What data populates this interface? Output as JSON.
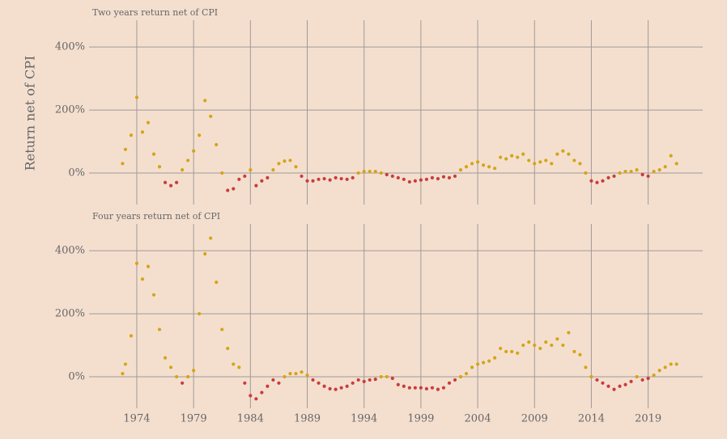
{
  "ylabel": "Return net of CPI",
  "chart_data": [
    {
      "type": "scatter",
      "title": "Two years return net of CPI",
      "x": [
        1972.75,
        1973,
        1973.5,
        1974,
        1974.5,
        1975,
        1975.5,
        1976,
        1976.5,
        1977,
        1977.5,
        1978,
        1978.5,
        1979,
        1979.5,
        1980,
        1980.5,
        1981,
        1981.5,
        1982,
        1982.5,
        1983,
        1983.5,
        1984,
        1984.5,
        1985,
        1985.5,
        1986,
        1986.5,
        1987,
        1987.5,
        1988,
        1988.5,
        1989,
        1989.5,
        1990,
        1990.5,
        1991,
        1991.5,
        1992,
        1992.5,
        1993,
        1993.5,
        1994,
        1994.5,
        1995,
        1995.5,
        1996,
        1996.5,
        1997,
        1997.5,
        1998,
        1998.5,
        1999,
        1999.5,
        2000,
        2000.5,
        2001,
        2001.5,
        2002,
        2002.5,
        2003,
        2003.5,
        2004,
        2004.5,
        2005,
        2005.5,
        2006,
        2006.5,
        2007,
        2007.5,
        2008,
        2008.5,
        2009,
        2009.5,
        2010,
        2010.5,
        2011,
        2011.5,
        2012,
        2012.5,
        2013,
        2013.5,
        2014,
        2014.5,
        2015,
        2015.5,
        2016,
        2016.5,
        2017,
        2017.5,
        2018,
        2018.5,
        2019,
        2019.5,
        2020,
        2020.5,
        2021,
        2021.5
      ],
      "values": [
        30,
        75,
        120,
        240,
        130,
        160,
        60,
        20,
        -30,
        -40,
        -30,
        10,
        40,
        70,
        120,
        230,
        180,
        90,
        0,
        -55,
        -50,
        -20,
        -10,
        10,
        -40,
        -25,
        -15,
        10,
        30,
        38,
        40,
        20,
        -10,
        -25,
        -25,
        -20,
        -18,
        -22,
        -15,
        -18,
        -20,
        -15,
        0,
        5,
        5,
        5,
        0,
        -5,
        -10,
        -15,
        -20,
        -28,
        -25,
        -22,
        -20,
        -15,
        -18,
        -12,
        -15,
        -10,
        10,
        20,
        30,
        35,
        25,
        20,
        15,
        50,
        45,
        55,
        50,
        60,
        40,
        30,
        35,
        40,
        30,
        60,
        70,
        60,
        40,
        30,
        0,
        -25,
        -30,
        -25,
        -15,
        -10,
        0,
        5,
        5,
        10,
        -5,
        -10,
        5,
        10,
        20,
        55,
        30
      ],
      "positive_color": "#d4a514",
      "negative_color": "#c93c3c",
      "xlim": [
        1969.8,
        2023.8
      ],
      "ylim": [
        -100,
        485
      ],
      "xticks": [
        1974,
        1979,
        1984,
        1989,
        1994,
        1999,
        2004,
        2009,
        2014,
        2019
      ],
      "yticks": [
        {
          "value": 0,
          "label": "0%"
        },
        {
          "value": 200,
          "label": "200%"
        },
        {
          "value": 400,
          "label": "400%"
        }
      ],
      "grid": true
    },
    {
      "type": "scatter",
      "title": "Four years return net of CPI",
      "x": [
        1972.75,
        1973,
        1973.5,
        1974,
        1974.5,
        1975,
        1975.5,
        1976,
        1976.5,
        1977,
        1977.5,
        1978,
        1978.5,
        1979,
        1979.5,
        1980,
        1980.5,
        1981,
        1981.5,
        1982,
        1982.5,
        1983,
        1983.5,
        1984,
        1984.5,
        1985,
        1985.5,
        1986,
        1986.5,
        1987,
        1987.5,
        1988,
        1988.5,
        1989,
        1989.5,
        1990,
        1990.5,
        1991,
        1991.5,
        1992,
        1992.5,
        1993,
        1993.5,
        1994,
        1994.5,
        1995,
        1995.5,
        1996,
        1996.5,
        1997,
        1997.5,
        1998,
        1998.5,
        1999,
        1999.5,
        2000,
        2000.5,
        2001,
        2001.5,
        2002,
        2002.5,
        2003,
        2003.5,
        2004,
        2004.5,
        2005,
        2005.5,
        2006,
        2006.5,
        2007,
        2007.5,
        2008,
        2008.5,
        2009,
        2009.5,
        2010,
        2010.5,
        2011,
        2011.5,
        2012,
        2012.5,
        2013,
        2013.5,
        2014,
        2014.5,
        2015,
        2015.5,
        2016,
        2016.5,
        2017,
        2017.5,
        2018,
        2018.5,
        2019,
        2019.5,
        2020,
        2020.5,
        2021,
        2021.5
      ],
      "values": [
        10,
        40,
        130,
        360,
        310,
        350,
        260,
        150,
        60,
        30,
        0,
        -20,
        0,
        20,
        200,
        390,
        440,
        300,
        150,
        90,
        40,
        30,
        -20,
        -60,
        -70,
        -50,
        -30,
        -10,
        -20,
        0,
        10,
        10,
        15,
        5,
        -10,
        -20,
        -30,
        -38,
        -40,
        -35,
        -30,
        -20,
        -10,
        -15,
        -10,
        -8,
        0,
        0,
        -5,
        -25,
        -30,
        -35,
        -35,
        -35,
        -38,
        -35,
        -40,
        -35,
        -20,
        -10,
        0,
        10,
        30,
        40,
        45,
        50,
        60,
        90,
        80,
        80,
        75,
        100,
        110,
        100,
        90,
        110,
        100,
        120,
        100,
        140,
        80,
        70,
        30,
        0,
        -10,
        -20,
        -30,
        -40,
        -30,
        -25,
        -15,
        0,
        -10,
        -5,
        5,
        20,
        30,
        40,
        40
      ],
      "positive_color": "#d4a514",
      "negative_color": "#c93c3c",
      "xlim": [
        1969.8,
        2023.8
      ],
      "ylim": [
        -100,
        485
      ],
      "xticks": [
        1974,
        1979,
        1984,
        1989,
        1994,
        1999,
        2004,
        2009,
        2014,
        2019
      ],
      "yticks": [
        {
          "value": 0,
          "label": "0%"
        },
        {
          "value": 200,
          "label": "200%"
        },
        {
          "value": 400,
          "label": "400%"
        }
      ],
      "grid": true
    }
  ]
}
